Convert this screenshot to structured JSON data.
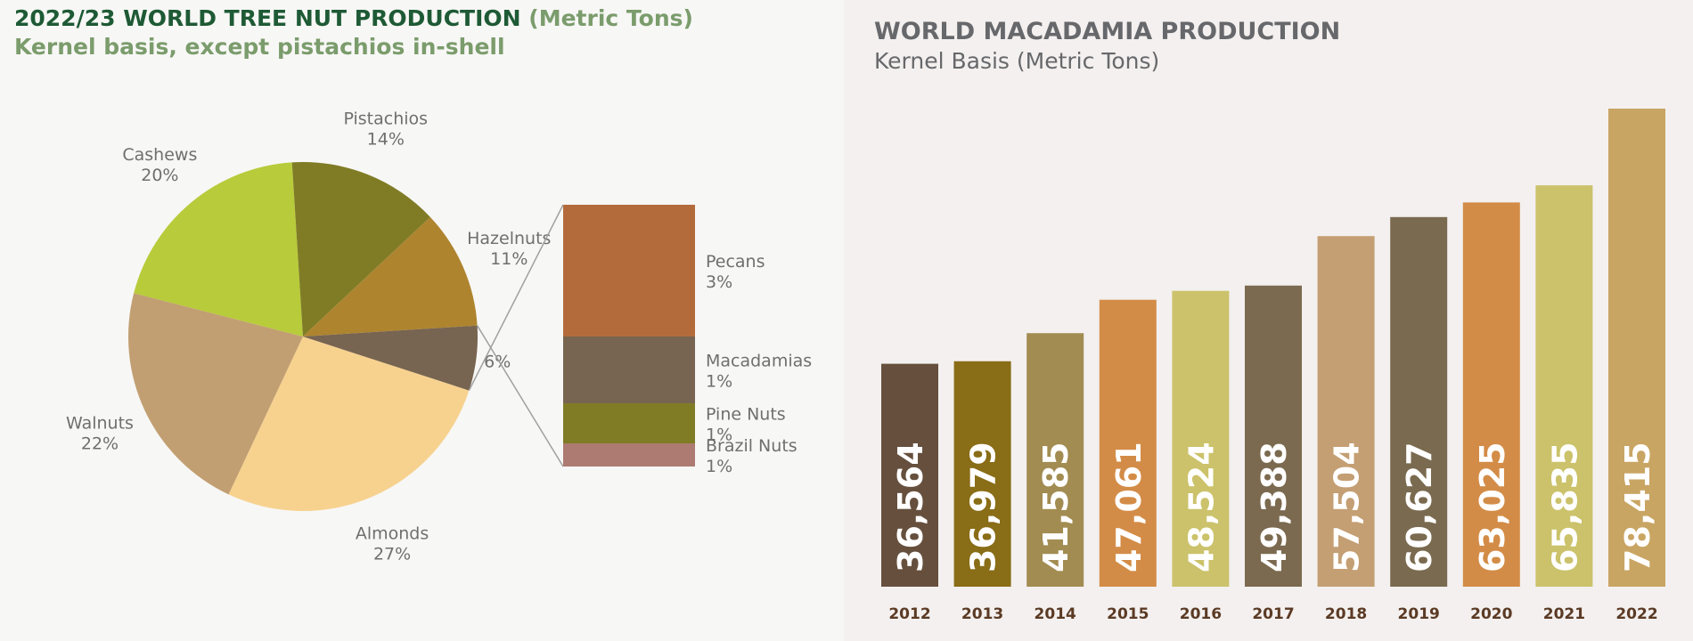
{
  "left_panel": {
    "title": "2022/23 WORLD TREE NUT PRODUCTION",
    "title_unit": "(Metric Tons)",
    "subtitle": "Kernel basis, except pistachios in-shell"
  },
  "right_panel": {
    "title": "WORLD MACADAMIA PRODUCTION",
    "subtitle": "Kernel Basis (Metric Tons)"
  },
  "chart_data": [
    {
      "type": "pie",
      "title": "2022/23 WORLD TREE NUT PRODUCTION (Metric Tons)",
      "subtitle": "Kernel basis, except pistachios in-shell",
      "slices": [
        {
          "name": "Almonds",
          "label": "27%",
          "value": 27,
          "color": "#f7d28f"
        },
        {
          "name": "Walnuts",
          "label": "22%",
          "value": 22,
          "color": "#c29f72"
        },
        {
          "name": "Cashews",
          "label": "20%",
          "value": 20,
          "color": "#b8cb3a"
        },
        {
          "name": "Pistachios",
          "label": "14%",
          "value": 14,
          "color": "#807c26"
        },
        {
          "name": "Hazelnuts",
          "label": "11%",
          "value": 11,
          "color": "#ae842f"
        },
        {
          "name": "",
          "label": "6%",
          "value": 6,
          "color": "#776451"
        }
      ],
      "breakdown": {
        "of_label": "6%",
        "segments": [
          {
            "name": "Pecans",
            "label": "3%",
            "value": 3,
            "color": "#b46b3c"
          },
          {
            "name": "Macadamias",
            "label": "1%",
            "value": 1,
            "color": "#776451"
          },
          {
            "name": "Pine Nuts",
            "label": "1%",
            "value": 1,
            "color": "#807c26"
          },
          {
            "name": "Brazil Nuts",
            "label": "1%",
            "value": 1,
            "color": "#ad7b72"
          }
        ]
      }
    },
    {
      "type": "bar",
      "title": "WORLD MACADAMIA PRODUCTION",
      "subtitle": "Kernel Basis (Metric Tons)",
      "categories": [
        "2012",
        "2013",
        "2014",
        "2015",
        "2016",
        "2017",
        "2018",
        "2019",
        "2020",
        "2021",
        "2022"
      ],
      "values": [
        36564,
        36979,
        41585,
        47061,
        48524,
        49388,
        57504,
        60627,
        63025,
        65835,
        78415
      ],
      "labels": [
        "36,564",
        "36,979",
        "41,585",
        "47,061",
        "48,524",
        "49,388",
        "57,504",
        "60,627",
        "63,025",
        "65,835",
        "78,415"
      ],
      "colors": [
        "#66503d",
        "#896d17",
        "#a28c51",
        "#d38c47",
        "#cbc26b",
        "#7b6a4f",
        "#c49f73",
        "#7a6a4f",
        "#d38c47",
        "#cbc26b",
        "#c9a563"
      ],
      "ylim": [
        0,
        78415
      ],
      "grid": false,
      "legend": "none"
    }
  ]
}
